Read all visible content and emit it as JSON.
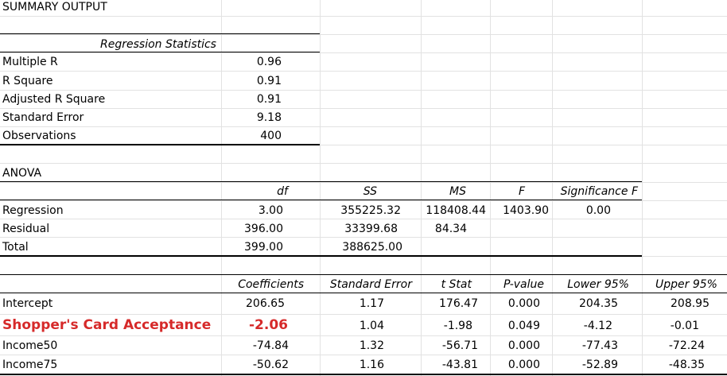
{
  "title": "SUMMARY OUTPUT",
  "regression_statistics": {
    "header": "Regression Statistics",
    "rows": [
      {
        "label": "Multiple R",
        "value": "0.96"
      },
      {
        "label": "R Square",
        "value": "0.91"
      },
      {
        "label": "Adjusted R Square",
        "value": "0.91"
      },
      {
        "label": "Standard Error",
        "value": "9.18"
      },
      {
        "label": "Observations",
        "value": "400"
      }
    ]
  },
  "anova": {
    "title": "ANOVA",
    "headers": [
      "df",
      "SS",
      "MS",
      "F",
      "Significance F"
    ],
    "rows": [
      {
        "label": "Regression",
        "df": "3.00",
        "ss": "355225.32",
        "ms": "118408.44",
        "f": "1403.90",
        "sig": "0.00"
      },
      {
        "label": "Residual",
        "df": "396.00",
        "ss": "33399.68",
        "ms": "84.34",
        "f": "",
        "sig": ""
      },
      {
        "label": "Total",
        "df": "399.00",
        "ss": "388625.00",
        "ms": "",
        "f": "",
        "sig": ""
      }
    ]
  },
  "coefficients": {
    "headers": [
      "Coefficients",
      "Standard Error",
      "t Stat",
      "P-value",
      "Lower 95%",
      "Upper 95%"
    ],
    "rows": [
      {
        "label": "Intercept",
        "coef": "206.65",
        "se": "1.17",
        "t": "176.47",
        "p": "0.000",
        "lower": "204.35",
        "upper": "208.95"
      },
      {
        "label": "Shopper's Card Acceptance",
        "coef": "-2.06",
        "se": "1.04",
        "t": "-1.98",
        "p": "0.049",
        "lower": "-4.12",
        "upper": "-0.01"
      },
      {
        "label": "Income50",
        "coef": "-74.84",
        "se": "1.32",
        "t": "-56.71",
        "p": "0.000",
        "lower": "-77.43",
        "upper": "-72.24"
      },
      {
        "label": "Income75",
        "coef": "-50.62",
        "se": "1.16",
        "t": "-43.81",
        "p": "0.000",
        "lower": "-52.89",
        "upper": "-48.35"
      }
    ]
  },
  "colors": {
    "highlight": "#d62a2a",
    "gridline": "#e2e2e2"
  }
}
